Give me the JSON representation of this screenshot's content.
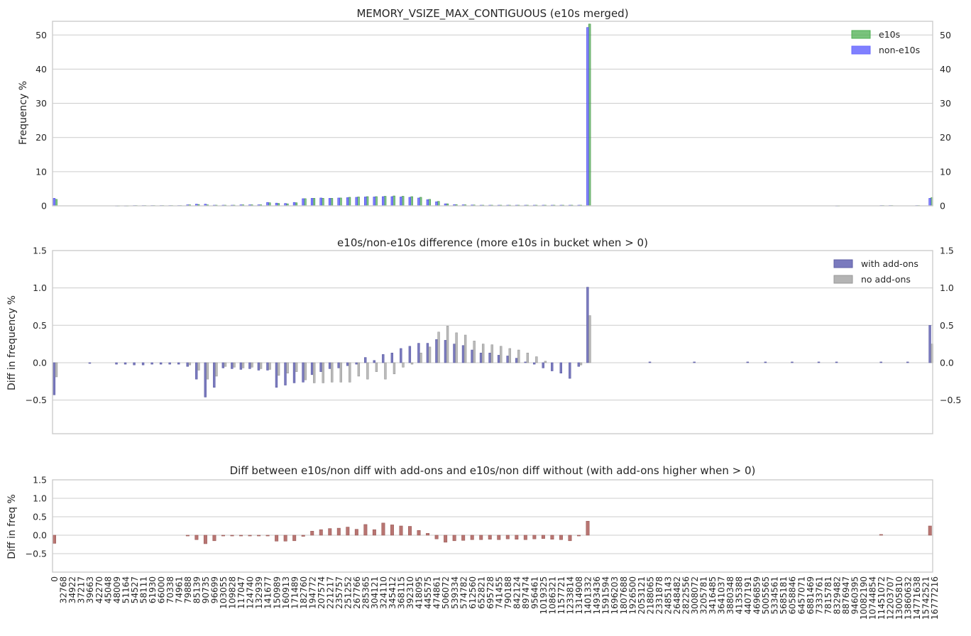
{
  "chart_data": [
    {
      "type": "bar",
      "title": "MEMORY_VSIZE_MAX_CONTIGUOUS (e10s merged)",
      "ylabel": "Frequency %",
      "ylim": [
        0,
        54
      ],
      "yticks": [
        0,
        10,
        20,
        30,
        40,
        50
      ],
      "grid": true,
      "legend": "top-right",
      "series": [
        {
          "name": "e10s",
          "color": "#4caf50",
          "sparse": {
            "0": 1.9,
            "14": 0.05,
            "16": 0.05,
            "18": 0.1,
            "20": 0.1,
            "22": 0.1,
            "24": 0.1,
            "26": 0.1,
            "28": 0.1,
            "30": 0.3,
            "32": 0.4,
            "34": 0.3,
            "36": 0.2,
            "38": 0.2,
            "40": 0.2,
            "42": 0.3,
            "44": 0.3,
            "46": 0.3,
            "48": 0.9,
            "50": 0.7,
            "52": 0.6,
            "54": 0.9,
            "56": 2.1,
            "58": 2.2,
            "60": 2.2,
            "62": 2.2,
            "64": 2.3,
            "66": 2.5,
            "68": 2.6,
            "70": 2.7,
            "72": 2.7,
            "74": 2.8,
            "76": 2.9,
            "78": 2.8,
            "80": 2.7,
            "82": 2.5,
            "84": 1.9,
            "86": 1.3,
            "88": 0.6,
            "90": 0.35,
            "92": 0.3,
            "94": 0.25,
            "96": 0.2,
            "98": 0.2,
            "100": 0.2,
            "102": 0.2,
            "104": 0.2,
            "106": 0.2,
            "108": 0.2,
            "110": 0.2,
            "112": 0.2,
            "114": 0.2,
            "116": 0.2,
            "118": 0.2,
            "120": 53.2,
            "176": 0.05,
            "186": 0.1,
            "188": 0.1,
            "194": 0.1,
            "197": 2.4
          }
        },
        {
          "name": "non-e10s",
          "color": "#6a6aff",
          "sparse": {
            "0": 2.2,
            "14": 0.05,
            "16": 0.05,
            "18": 0.1,
            "20": 0.1,
            "22": 0.1,
            "24": 0.1,
            "26": 0.1,
            "28": 0.1,
            "30": 0.3,
            "32": 0.5,
            "34": 0.5,
            "36": 0.2,
            "38": 0.2,
            "40": 0.2,
            "42": 0.3,
            "44": 0.3,
            "46": 0.3,
            "48": 1.0,
            "50": 0.8,
            "52": 0.7,
            "54": 1.0,
            "56": 2.1,
            "58": 2.2,
            "60": 2.3,
            "62": 2.2,
            "64": 2.3,
            "66": 2.4,
            "68": 2.5,
            "70": 2.6,
            "72": 2.6,
            "74": 2.7,
            "76": 2.7,
            "78": 2.6,
            "80": 2.5,
            "82": 2.3,
            "84": 1.8,
            "86": 1.2,
            "88": 0.6,
            "90": 0.35,
            "92": 0.3,
            "94": 0.25,
            "96": 0.2,
            "98": 0.2,
            "100": 0.2,
            "102": 0.2,
            "104": 0.2,
            "106": 0.2,
            "108": 0.2,
            "110": 0.2,
            "112": 0.2,
            "114": 0.2,
            "116": 0.2,
            "118": 0.2,
            "120": 52.2,
            "176": 0.05,
            "186": 0.1,
            "188": 0.1,
            "194": 0.1,
            "197": 2.2
          }
        }
      ]
    },
    {
      "type": "bar",
      "title": "e10s/non-e10s difference (more e10s in bucket when > 0)",
      "ylabel": "Diff in frequency %",
      "ylim": [
        -0.95,
        1.5
      ],
      "yticks": [
        -0.5,
        0.0,
        0.5,
        1.0,
        1.5
      ],
      "grid": true,
      "legend": "top-right",
      "series": [
        {
          "name": "with add-ons",
          "color": "#7a7abe",
          "sparse": {
            "0": -0.43,
            "8": -0.01,
            "14": -0.02,
            "16": -0.02,
            "18": -0.03,
            "20": -0.03,
            "22": -0.02,
            "24": -0.02,
            "26": -0.02,
            "28": -0.02,
            "30": -0.05,
            "32": -0.22,
            "34": -0.46,
            "36": -0.33,
            "38": -0.07,
            "40": -0.08,
            "42": -0.09,
            "44": -0.08,
            "46": -0.1,
            "48": -0.1,
            "50": -0.33,
            "52": -0.3,
            "54": -0.27,
            "56": -0.26,
            "58": -0.16,
            "60": -0.12,
            "62": -0.08,
            "64": -0.07,
            "66": -0.04,
            "68": -0.02,
            "70": 0.07,
            "72": 0.03,
            "74": 0.11,
            "76": 0.13,
            "78": 0.19,
            "80": 0.22,
            "82": 0.26,
            "84": 0.26,
            "86": 0.31,
            "88": 0.3,
            "90": 0.25,
            "92": 0.23,
            "94": 0.17,
            "96": 0.13,
            "98": 0.13,
            "100": 0.1,
            "102": 0.09,
            "104": 0.06,
            "106": 0.01,
            "108": -0.02,
            "110": -0.07,
            "112": -0.11,
            "114": -0.14,
            "116": -0.21,
            "118": -0.05,
            "120": 1.01,
            "134": 0.01,
            "144": 0.01,
            "156": 0.01,
            "160": 0.01,
            "166": 0.01,
            "172": 0.01,
            "176": 0.01,
            "186": 0.01,
            "192": 0.01,
            "197": 0.5
          }
        },
        {
          "name": "no add-ons",
          "color": "#b4b4b4",
          "sparse": {
            "0": -0.19,
            "30": -0.03,
            "32": -0.1,
            "34": -0.22,
            "36": -0.18,
            "38": -0.05,
            "40": -0.06,
            "42": -0.07,
            "44": -0.06,
            "46": -0.08,
            "48": -0.09,
            "50": -0.17,
            "52": -0.14,
            "54": -0.12,
            "56": -0.23,
            "58": -0.27,
            "60": -0.27,
            "62": -0.26,
            "64": -0.26,
            "66": -0.26,
            "68": -0.18,
            "70": -0.22,
            "72": -0.12,
            "74": -0.22,
            "76": -0.15,
            "78": -0.06,
            "80": -0.02,
            "82": 0.13,
            "84": 0.21,
            "86": 0.41,
            "88": 0.49,
            "90": 0.4,
            "92": 0.37,
            "94": 0.29,
            "96": 0.25,
            "98": 0.24,
            "100": 0.22,
            "102": 0.19,
            "104": 0.17,
            "106": 0.13,
            "108": 0.08,
            "110": 0.02,
            "118": -0.03,
            "120": 0.63,
            "197": 0.25
          }
        }
      ]
    },
    {
      "type": "bar",
      "title": "Diff between e10s/non diff with add-ons and e10s/non diff without (with add-ons higher when > 0)",
      "ylabel": "Diff in freq %",
      "ylim": [
        -1.0,
        1.5
      ],
      "yticks": [
        -0.5,
        0.0,
        0.5,
        1.0,
        1.5
      ],
      "grid": true,
      "series": [
        {
          "name": "",
          "color": "#b87572",
          "sparse": {
            "0": -0.22,
            "30": -0.02,
            "32": -0.12,
            "34": -0.23,
            "36": -0.15,
            "38": -0.02,
            "40": -0.02,
            "42": -0.02,
            "44": -0.02,
            "46": -0.02,
            "48": -0.02,
            "50": -0.16,
            "52": -0.16,
            "54": -0.15,
            "56": -0.03,
            "58": 0.11,
            "60": 0.15,
            "62": 0.18,
            "64": 0.19,
            "66": 0.22,
            "68": 0.16,
            "70": 0.29,
            "72": 0.15,
            "74": 0.33,
            "76": 0.28,
            "78": 0.25,
            "80": 0.24,
            "82": 0.13,
            "84": 0.05,
            "86": -0.1,
            "88": -0.19,
            "90": -0.15,
            "92": -0.14,
            "94": -0.12,
            "96": -0.12,
            "98": -0.11,
            "100": -0.12,
            "102": -0.1,
            "104": -0.11,
            "106": -0.12,
            "108": -0.1,
            "110": -0.09,
            "112": -0.11,
            "114": -0.12,
            "116": -0.15,
            "118": -0.02,
            "120": 0.38,
            "186": 0.02,
            "197": 0.25
          }
        }
      ]
    }
  ],
  "xtick_labels": [
    "0",
    "32768",
    "34922",
    "37217",
    "39663",
    "42270",
    "45048",
    "48009",
    "51164",
    "54527",
    "58111",
    "61930",
    "66000",
    "70338",
    "74961",
    "79888",
    "85139",
    "90735",
    "96699",
    "103055",
    "109828",
    "117047",
    "124740",
    "132939",
    "141677",
    "150989",
    "160913",
    "171489",
    "182760",
    "194772",
    "207574",
    "221217",
    "235757",
    "251252",
    "267766",
    "285365",
    "304121",
    "324110",
    "345412",
    "368115",
    "392310",
    "418095",
    "445575",
    "474861",
    "506072",
    "539334",
    "574782",
    "612560",
    "652821",
    "695728",
    "741455",
    "790188",
    "842124",
    "897474",
    "956461",
    "1019325",
    "1086321",
    "1157721",
    "1233814",
    "1314908",
    "1401332",
    "1493436",
    "1591594",
    "1696203",
    "1807688",
    "1926500",
    "2053121",
    "2188065",
    "2331878",
    "2485143",
    "2648482",
    "2822556",
    "3008072",
    "3205781",
    "3416485",
    "3641037",
    "3880348",
    "4135388",
    "4407191",
    "4696859",
    "5005565",
    "5334561",
    "5685181",
    "6058846",
    "6457071",
    "6881469",
    "7333761",
    "7815781",
    "8329482",
    "8876947",
    "9460395",
    "10082190",
    "10744854",
    "11451072",
    "12203707",
    "13005810",
    "13860632",
    "14771638",
    "15742521",
    "16777216"
  ]
}
